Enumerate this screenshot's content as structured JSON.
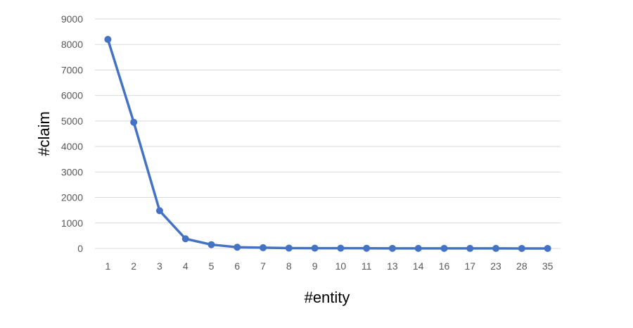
{
  "chart_data": {
    "type": "line",
    "title": "",
    "xlabel": "#entity",
    "ylabel": "#claim",
    "categories": [
      "1",
      "2",
      "3",
      "4",
      "5",
      "6",
      "7",
      "8",
      "9",
      "10",
      "11",
      "13",
      "14",
      "16",
      "17",
      "23",
      "28",
      "35"
    ],
    "series": [
      {
        "values": [
          8200,
          4950,
          1480,
          380,
          150,
          50,
          30,
          15,
          12,
          10,
          8,
          5,
          4,
          3,
          2,
          2,
          1,
          1
        ]
      }
    ],
    "ylim": [
      0,
      9000
    ],
    "yticks": [
      0,
      1000,
      2000,
      3000,
      4000,
      5000,
      6000,
      7000,
      8000,
      9000
    ],
    "grid": true,
    "legend": "none",
    "line_color": "#4472c4"
  }
}
